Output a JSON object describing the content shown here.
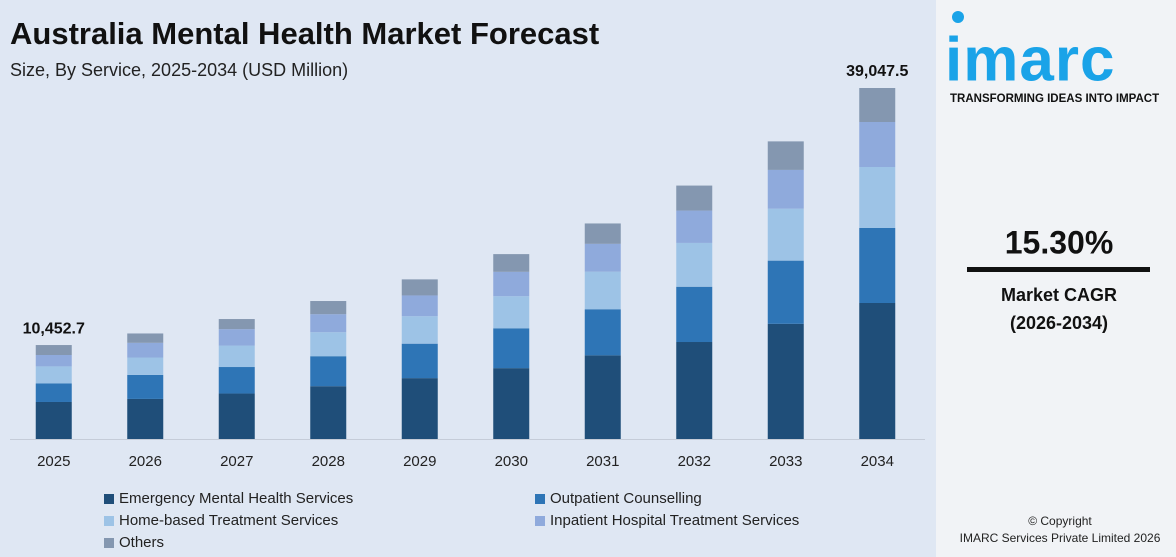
{
  "chart_data": {
    "type": "stacked_bar",
    "title": "Australia Mental Health Market Forecast",
    "subtitle": "Size, By Service, 2025-2034 (USD Million)",
    "categories": [
      "2025",
      "2026",
      "2027",
      "2028",
      "2029",
      "2030",
      "2031",
      "2032",
      "2033",
      "2034"
    ],
    "series": [
      {
        "name": "Emergency Mental Health Services",
        "color": "#1f4e79",
        "values": [
          4118,
          4458,
          5057,
          5873,
          6771,
          7882,
          9305,
          10790,
          12813,
          15130
        ]
      },
      {
        "name": "Outpatient Counselling",
        "color": "#2e75b6",
        "values": [
          2059,
          2675,
          2950,
          3337,
          3833,
          4434,
          5130,
          6149,
          7030,
          8344
        ]
      },
      {
        "name": "Home-based Treatment Services",
        "color": "#9dc3e6",
        "values": [
          1900,
          1932,
          2388,
          2670,
          3066,
          3572,
          4175,
          4873,
          5783,
          6786
        ]
      },
      {
        "name": "Inpatient Hospital Treatment Services",
        "color": "#8faadc",
        "values": [
          1267,
          1635,
          1826,
          2002,
          2300,
          2710,
          3102,
          3597,
          4309,
          5006
        ]
      },
      {
        "name": "Others",
        "color": "#8497b0",
        "values": [
          1109,
          1040,
          1124,
          1468,
          1788,
          1971,
          2267,
          2784,
          3175,
          3782
        ]
      }
    ],
    "total_labels": [
      {
        "category": "2025",
        "value": 10452.7,
        "label": "10,452.7"
      },
      {
        "category": "2034",
        "value": 39047.5,
        "label": "39,047.5"
      }
    ]
  },
  "sidebar": {
    "logo": "imarc",
    "tagline": "TRANSFORMING IDEAS INTO IMPACT",
    "cagr": "15.30%",
    "cagr_label": "Market CAGR",
    "cagr_period": "(2026-2034)",
    "copyright": "© Copyright",
    "company": "IMARC Services Private Limited 2026"
  }
}
